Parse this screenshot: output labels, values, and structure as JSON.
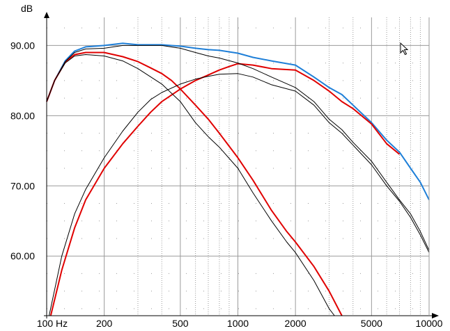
{
  "chart_data": {
    "type": "line",
    "title": "",
    "xlabel": "",
    "ylabel": "dB",
    "x_scale": "log",
    "xlim": [
      100,
      10000
    ],
    "ylim": [
      51.5,
      94
    ],
    "grid": true,
    "x_tick_labels": [
      {
        "value": 100,
        "label": "100 Hz"
      },
      {
        "value": 200,
        "label": "200"
      },
      {
        "value": 500,
        "label": "500"
      },
      {
        "value": 1000,
        "label": "1000"
      },
      {
        "value": 2000,
        "label": "2000"
      },
      {
        "value": 5000,
        "label": "5000"
      },
      {
        "value": 10000,
        "label": "10000"
      }
    ],
    "y_tick_labels": [
      {
        "value": 60,
        "label": "60.00"
      },
      {
        "value": 70,
        "label": "70.00"
      },
      {
        "value": 80,
        "label": "80.00"
      },
      {
        "value": 90,
        "label": "90.00"
      }
    ],
    "colors": {
      "blue": "#1e7fd8",
      "red": "#e00000",
      "black": "#000000",
      "grid": "#9a9a9a"
    },
    "series": [
      {
        "color": "#1e7fd8",
        "points": [
          [
            100,
            82
          ],
          [
            110,
            85
          ],
          [
            125,
            87.8
          ],
          [
            140,
            89.2
          ],
          [
            160,
            89.8
          ],
          [
            200,
            90.0
          ],
          [
            250,
            90.3
          ],
          [
            300,
            90.1
          ],
          [
            400,
            90.1
          ],
          [
            500,
            89.9
          ],
          [
            600,
            89.6
          ],
          [
            700,
            89.4
          ],
          [
            800,
            89.3
          ],
          [
            1000,
            88.9
          ],
          [
            1200,
            88.3
          ],
          [
            1500,
            87.8
          ],
          [
            2000,
            87.2
          ],
          [
            2500,
            85.5
          ],
          [
            3000,
            84.0
          ],
          [
            3500,
            83.0
          ],
          [
            4000,
            81.5
          ],
          [
            5000,
            79.0
          ],
          [
            6000,
            76.5
          ],
          [
            7000,
            74.8
          ],
          [
            8000,
            72.5
          ],
          [
            9000,
            70.5
          ],
          [
            10000,
            68.0
          ]
        ]
      },
      {
        "color": "#e00000",
        "points": [
          [
            100,
            82
          ],
          [
            110,
            85
          ],
          [
            125,
            87.6
          ],
          [
            140,
            88.7
          ],
          [
            160,
            89.0
          ],
          [
            200,
            89.0
          ],
          [
            250,
            88.4
          ],
          [
            300,
            87.7
          ],
          [
            350,
            86.8
          ],
          [
            400,
            86.0
          ],
          [
            450,
            85.0
          ],
          [
            500,
            83.8
          ],
          [
            600,
            81.5
          ],
          [
            700,
            79.5
          ],
          [
            800,
            77.5
          ],
          [
            1000,
            74.0
          ],
          [
            1200,
            70.8
          ],
          [
            1500,
            66.5
          ],
          [
            1800,
            63.5
          ],
          [
            2000,
            62.0
          ],
          [
            2500,
            58.5
          ],
          [
            3000,
            55.0
          ],
          [
            3500,
            51.5
          ]
        ]
      },
      {
        "color": "#e00000",
        "points": [
          [
            105,
            51.5
          ],
          [
            120,
            58
          ],
          [
            140,
            64
          ],
          [
            160,
            68
          ],
          [
            200,
            72.5
          ],
          [
            250,
            76.0
          ],
          [
            300,
            78.5
          ],
          [
            350,
            80.5
          ],
          [
            400,
            82.0
          ],
          [
            500,
            83.8
          ],
          [
            600,
            85.0
          ],
          [
            700,
            85.8
          ],
          [
            800,
            86.5
          ],
          [
            900,
            87.0
          ],
          [
            1000,
            87.4
          ],
          [
            1200,
            87.2
          ],
          [
            1500,
            86.7
          ],
          [
            2000,
            86.5
          ],
          [
            2500,
            85.0
          ],
          [
            3000,
            83.5
          ],
          [
            3500,
            82.0
          ],
          [
            4000,
            81.0
          ],
          [
            5000,
            78.8
          ],
          [
            6000,
            76.0
          ],
          [
            7000,
            74.5
          ]
        ]
      },
      {
        "color": "#000000",
        "points": [
          [
            100,
            82
          ],
          [
            110,
            85
          ],
          [
            125,
            87.5
          ],
          [
            140,
            88.5
          ],
          [
            160,
            88.7
          ],
          [
            200,
            88.5
          ],
          [
            250,
            87.8
          ],
          [
            300,
            86.7
          ],
          [
            400,
            84.5
          ],
          [
            500,
            82.0
          ],
          [
            600,
            79.0
          ],
          [
            700,
            77.0
          ],
          [
            800,
            75.5
          ],
          [
            1000,
            72.5
          ],
          [
            1200,
            69.0
          ],
          [
            1500,
            65.0
          ],
          [
            1800,
            62.0
          ],
          [
            2000,
            60.5
          ],
          [
            2500,
            56.5
          ],
          [
            3000,
            52.5
          ],
          [
            3200,
            51.5
          ]
        ]
      },
      {
        "color": "#000000",
        "points": [
          [
            103,
            51.5
          ],
          [
            120,
            60
          ],
          [
            140,
            66
          ],
          [
            160,
            69.5
          ],
          [
            200,
            74.0
          ],
          [
            250,
            77.8
          ],
          [
            300,
            80.5
          ],
          [
            350,
            82.3
          ],
          [
            400,
            83.3
          ],
          [
            500,
            84.5
          ],
          [
            600,
            85.2
          ],
          [
            700,
            85.6
          ],
          [
            800,
            85.9
          ],
          [
            1000,
            86.0
          ],
          [
            1200,
            85.5
          ],
          [
            1500,
            84.4
          ],
          [
            2000,
            83.5
          ],
          [
            2500,
            81.5
          ],
          [
            3000,
            79.0
          ],
          [
            3500,
            77.5
          ],
          [
            4000,
            75.8
          ],
          [
            5000,
            73.0
          ],
          [
            6000,
            70.0
          ],
          [
            7000,
            67.8
          ],
          [
            8000,
            65.5
          ],
          [
            9000,
            63.0
          ],
          [
            10000,
            60.5
          ]
        ]
      },
      {
        "color": "#000000",
        "points": [
          [
            100,
            82
          ],
          [
            110,
            85
          ],
          [
            125,
            87.7
          ],
          [
            140,
            89.0
          ],
          [
            160,
            89.5
          ],
          [
            200,
            89.6
          ],
          [
            250,
            90.0
          ],
          [
            300,
            90.0
          ],
          [
            400,
            90.0
          ],
          [
            500,
            89.6
          ],
          [
            600,
            89.0
          ],
          [
            700,
            88.5
          ],
          [
            800,
            88.2
          ],
          [
            1000,
            87.5
          ],
          [
            1200,
            86.7
          ],
          [
            1500,
            85.5
          ],
          [
            2000,
            84.0
          ],
          [
            2500,
            82.0
          ],
          [
            3000,
            79.5
          ],
          [
            3500,
            78.0
          ],
          [
            4000,
            76.2
          ],
          [
            5000,
            73.5
          ],
          [
            6000,
            70.5
          ],
          [
            7000,
            68.0
          ],
          [
            8000,
            66.0
          ],
          [
            9000,
            63.5
          ],
          [
            10000,
            60.8
          ]
        ]
      }
    ],
    "annotations": {
      "cursor": "arrow-cursor-icon"
    }
  }
}
